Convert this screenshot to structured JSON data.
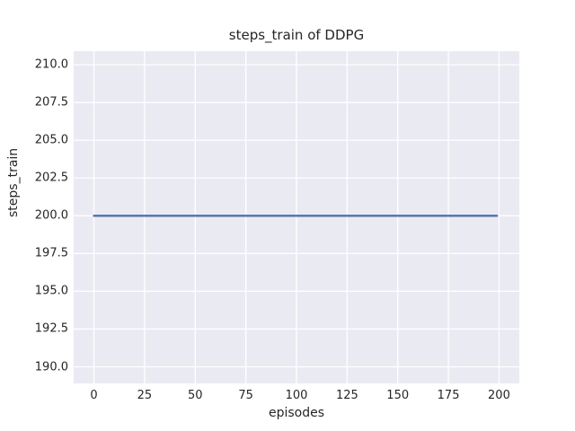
{
  "chart_data": {
    "type": "line",
    "title": "steps_train of DDPG",
    "xlabel": "episodes",
    "ylabel": "steps_train",
    "x_ticks": [
      0,
      25,
      50,
      75,
      100,
      125,
      150,
      175,
      200
    ],
    "x_tick_labels": [
      "0",
      "25",
      "50",
      "75",
      "100",
      "125",
      "150",
      "175",
      "200"
    ],
    "y_ticks": [
      190.0,
      192.5,
      195.0,
      197.5,
      200.0,
      202.5,
      205.0,
      207.5,
      210.0
    ],
    "y_tick_labels": [
      "190.0",
      "192.5",
      "195.0",
      "197.5",
      "200.0",
      "202.5",
      "205.0",
      "207.5",
      "210.0"
    ],
    "xlim": [
      -10,
      210
    ],
    "ylim": [
      188.9,
      210.9
    ],
    "grid": true,
    "legend": "none",
    "series": [
      {
        "name": "steps_train",
        "x_start": 0,
        "x_end": 199,
        "y_constant": 200,
        "description": "constant value 200 for every episode from 0 to 199"
      }
    ],
    "colors": {
      "figure_background": "#FFFFFF",
      "axes_background": "#EAEAF2",
      "gridline": "#FFFFFF",
      "line": "#4C72B0",
      "text": "#262626"
    }
  }
}
